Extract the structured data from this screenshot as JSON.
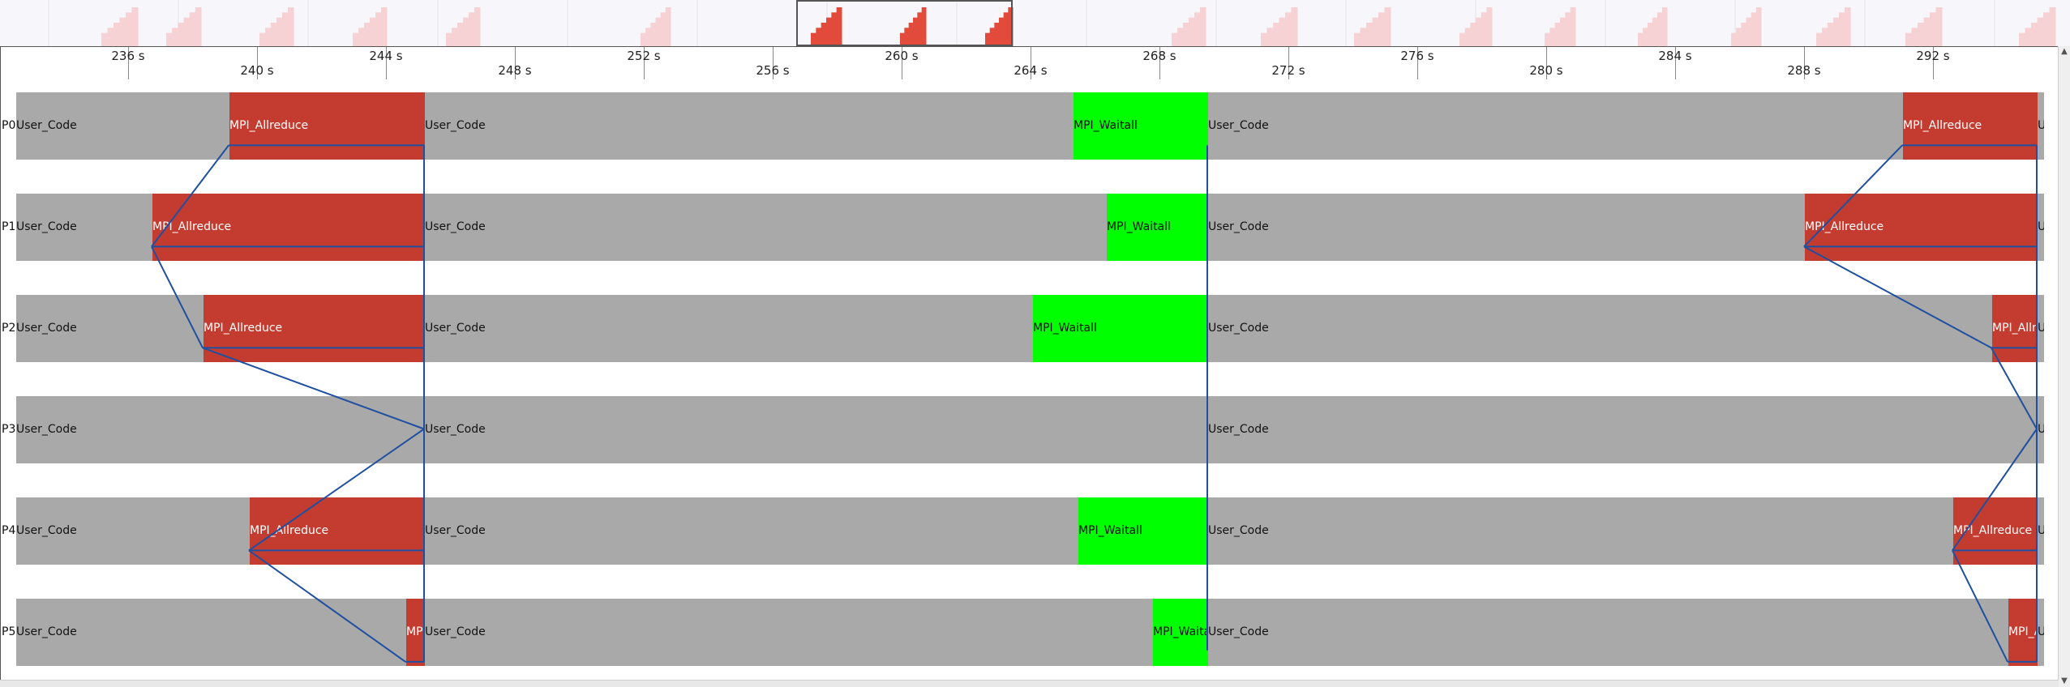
{
  "minimap": {
    "description_colors": {
      "pale": "#f6d2d4",
      "strong": "#e24a3b",
      "selection": "#555555"
    },
    "bursts": [
      {
        "x": 125,
        "w": 45,
        "strong": false
      },
      {
        "x": 205,
        "w": 43,
        "strong": false
      },
      {
        "x": 320,
        "w": 42,
        "strong": false
      },
      {
        "x": 435,
        "w": 42,
        "strong": false
      },
      {
        "x": 550,
        "w": 42,
        "strong": false
      },
      {
        "x": 790,
        "w": 37,
        "strong": false
      },
      {
        "x": 1000,
        "w": 38,
        "strong": true
      },
      {
        "x": 1110,
        "w": 32,
        "strong": true
      },
      {
        "x": 1215,
        "w": 34,
        "strong": true
      },
      {
        "x": 1445,
        "w": 42,
        "strong": false
      },
      {
        "x": 1555,
        "w": 45,
        "strong": false
      },
      {
        "x": 1670,
        "w": 45,
        "strong": false
      },
      {
        "x": 1800,
        "w": 40,
        "strong": false
      },
      {
        "x": 1905,
        "w": 38,
        "strong": false
      },
      {
        "x": 2020,
        "w": 36,
        "strong": false
      },
      {
        "x": 2135,
        "w": 37,
        "strong": false
      },
      {
        "x": 2240,
        "w": 42,
        "strong": false
      },
      {
        "x": 2350,
        "w": 45,
        "strong": false
      },
      {
        "x": 2490,
        "w": 45,
        "strong": false
      }
    ],
    "selection": {
      "start": 983,
      "end": 1248
    }
  },
  "ruler": {
    "ticks": [
      {
        "t": "236 s",
        "x": 157
      },
      {
        "t": "240 s",
        "x": 316
      },
      {
        "t": "244 s",
        "x": 475
      },
      {
        "t": "248 s",
        "x": 634
      },
      {
        "t": "252 s",
        "x": 793
      },
      {
        "t": "256 s",
        "x": 952
      },
      {
        "t": "260 s",
        "x": 1111
      },
      {
        "t": "264 s",
        "x": 1270
      },
      {
        "t": "268 s",
        "x": 1429
      },
      {
        "t": "272 s",
        "x": 1588
      },
      {
        "t": "276 s",
        "x": 1747
      },
      {
        "t": "280 s",
        "x": 1906
      },
      {
        "t": "284 s",
        "x": 2065
      },
      {
        "t": "288 s",
        "x": 2224
      },
      {
        "t": "292 s",
        "x": 2383
      }
    ]
  },
  "lanes": [
    {
      "label": "P0",
      "segments": [
        {
          "type": "user",
          "text": "User_Code",
          "x": 19,
          "w": 263
        },
        {
          "type": "allreduce",
          "text": "MPI_Allreduce",
          "x": 282,
          "w": 241
        },
        {
          "type": "user",
          "text": "User_Code",
          "x": 523,
          "w": 800
        },
        {
          "type": "waitall",
          "text": "MPI_Waitall",
          "x": 1323,
          "w": 166
        },
        {
          "type": "user",
          "text": "User_Code",
          "x": 1489,
          "w": 857
        },
        {
          "type": "allreduce",
          "text": "MPI_Allreduce",
          "x": 2346,
          "w": 166
        },
        {
          "type": "user",
          "text": "U",
          "x": 2512,
          "w": 8
        }
      ]
    },
    {
      "label": "P1",
      "segments": [
        {
          "type": "user",
          "text": "User_Code",
          "x": 19,
          "w": 168
        },
        {
          "type": "allreduce",
          "text": "MPI_Allreduce",
          "x": 187,
          "w": 336
        },
        {
          "type": "user",
          "text": "User_Code",
          "x": 523,
          "w": 841
        },
        {
          "type": "waitall",
          "text": "MPI_Waitall",
          "x": 1364,
          "w": 125
        },
        {
          "type": "user",
          "text": "User_Code",
          "x": 1489,
          "w": 736
        },
        {
          "type": "allreduce",
          "text": "MPI_Allreduce",
          "x": 2225,
          "w": 287
        },
        {
          "type": "user",
          "text": "U",
          "x": 2512,
          "w": 8
        }
      ]
    },
    {
      "label": "P2",
      "segments": [
        {
          "type": "user",
          "text": "User_Code",
          "x": 19,
          "w": 231
        },
        {
          "type": "allreduce",
          "text": "MPI_Allreduce",
          "x": 250,
          "w": 273
        },
        {
          "type": "user",
          "text": "User_Code",
          "x": 523,
          "w": 750
        },
        {
          "type": "waitall",
          "text": "MPI_Waitall",
          "x": 1273,
          "w": 216
        },
        {
          "type": "user",
          "text": "User_Code",
          "x": 1489,
          "w": 967
        },
        {
          "type": "allreduce",
          "text": "MPI_Allreduce",
          "x": 2456,
          "w": 56
        },
        {
          "type": "user",
          "text": "U",
          "x": 2512,
          "w": 8
        }
      ]
    },
    {
      "label": "P3",
      "segments": [
        {
          "type": "user",
          "text": "User_Code",
          "x": 19,
          "w": 504
        },
        {
          "type": "user",
          "text": "User_Code",
          "x": 523,
          "w": 966
        },
        {
          "type": "user",
          "text": "User_Code",
          "x": 1489,
          "w": 1023
        },
        {
          "type": "user",
          "text": "U",
          "x": 2512,
          "w": 8
        }
      ]
    },
    {
      "label": "P4",
      "segments": [
        {
          "type": "user",
          "text": "User_Code",
          "x": 19,
          "w": 288
        },
        {
          "type": "allreduce",
          "text": "MPI_Allreduce",
          "x": 307,
          "w": 216
        },
        {
          "type": "user",
          "text": "User_Code",
          "x": 523,
          "w": 806
        },
        {
          "type": "waitall",
          "text": "MPI_Waitall",
          "x": 1329,
          "w": 160
        },
        {
          "type": "user",
          "text": "User_Code",
          "x": 1489,
          "w": 919
        },
        {
          "type": "allreduce",
          "text": "MPI_Allreduce",
          "x": 2408,
          "w": 104
        },
        {
          "type": "user",
          "text": "U",
          "x": 2512,
          "w": 8
        }
      ]
    },
    {
      "label": "P5",
      "segments": [
        {
          "type": "user",
          "text": "User_Code",
          "x": 19,
          "w": 481
        },
        {
          "type": "allreduce",
          "text": "MP",
          "x": 500,
          "w": 23
        },
        {
          "type": "user",
          "text": "User_Code",
          "x": 523,
          "w": 898
        },
        {
          "type": "waitall",
          "text": "MPI_Waitall",
          "x": 1421,
          "w": 68
        },
        {
          "type": "user",
          "text": "User_Code",
          "x": 1489,
          "w": 987
        },
        {
          "type": "allreduce",
          "text": "MPI_A",
          "x": 2476,
          "w": 36
        },
        {
          "type": "user",
          "text": "U",
          "x": 2512,
          "w": 8
        }
      ]
    }
  ],
  "colors": {
    "message_line": "#1f4fa0",
    "user": "#a9a9a9",
    "allreduce": "#c43c30",
    "waitall": "#00ff00"
  }
}
